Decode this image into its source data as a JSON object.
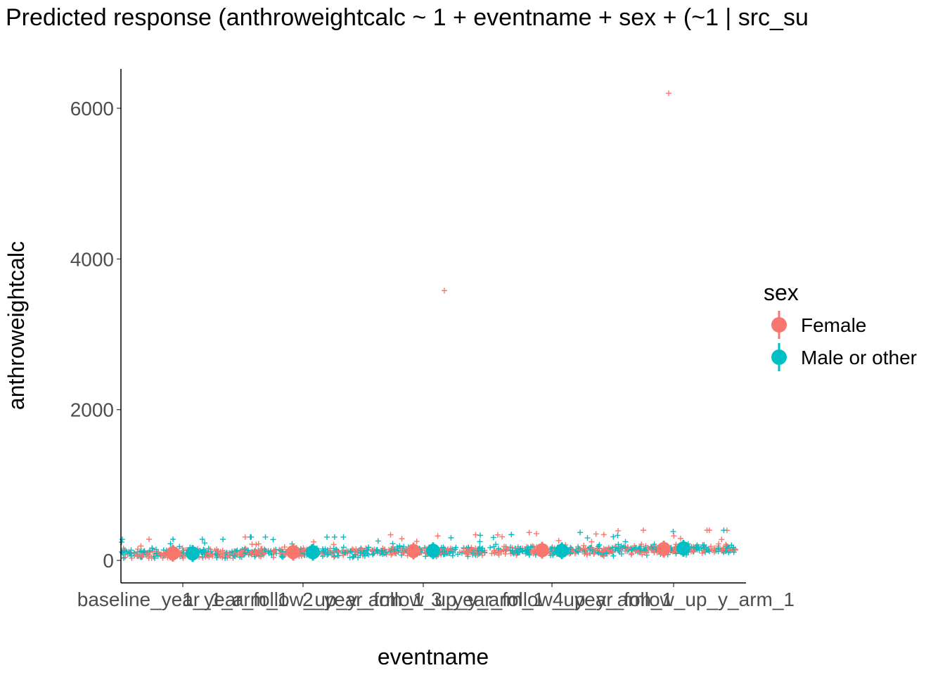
{
  "chart_data": {
    "type": "scatter",
    "title": "Predicted response (anthroweightcalc ~ 1 + eventname + sex + (~1 | src_su",
    "xlabel": "eventname",
    "ylabel": "anthroweightcalc",
    "categories": [
      "baseline_year_1_arm_1",
      "1_year_follow_up_y_arm_1",
      "2_year_follow_up_y_arm_1",
      "3_year_follow_up_y_arm_1",
      "4_year_follow_up_y_arm_1"
    ],
    "y_ticks": [
      "0",
      "2000",
      "4000",
      "6000"
    ],
    "ylim": [
      -300,
      6500
    ],
    "grid": false,
    "legend": {
      "title": "sex",
      "placement": "right",
      "entries": [
        "Female",
        "Male or other"
      ]
    },
    "colors": {
      "Female": "#F8766D",
      "Male or other": "#00BFC4"
    },
    "series": [
      {
        "name": "Female",
        "predicted": [
          95,
          110,
          125,
          135,
          150
        ]
      },
      {
        "name": "Male or other",
        "predicted": [
          92,
          108,
          128,
          128,
          160
        ]
      }
    ],
    "raw_points": {
      "typical_range": [
        30,
        280
      ],
      "notable": [
        {
          "sex": "Female",
          "category": "2_year_follow_up_y_arm_1",
          "y": 3580
        },
        {
          "sex": "Female",
          "category": "4_year_follow_up_y_arm_1",
          "y": 6200
        }
      ]
    }
  }
}
